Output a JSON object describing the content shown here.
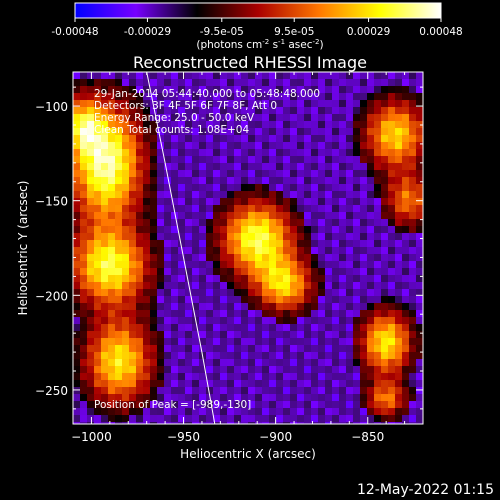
{
  "colorbar": {
    "tick_labels": [
      "-0.00048",
      "-0.00029",
      "-9.5e-05",
      "9.5e-05",
      "0.00029",
      "0.00048"
    ],
    "tick_values": [
      -0.00048,
      -0.00029,
      -9.5e-05,
      9.5e-05,
      0.00029,
      0.00048
    ],
    "range": [
      -0.00048,
      0.00048
    ],
    "units_main": "(photons cm",
    "units_exp1": "-2",
    "units_mid": " s",
    "units_exp2": "-1",
    "units_end": " asec",
    "units_exp3": "-2",
    "units_close": ")",
    "colors": [
      "#0000ff",
      "#7700ff",
      "#000000",
      "#aa0000",
      "#ff7700",
      "#ffff00",
      "#ffffff"
    ]
  },
  "overlay": {
    "time_range": "29-Jan-2014 05:44:40.000 to 05:48:48.000",
    "detectors": "Detectors: 3F 4F 5F 6F 7F 8F, Att 0",
    "energy": "Energy Range: 25.0 - 50.0 keV",
    "clean": "Clean     Total counts: 1.08E+04",
    "peak": "Position of Peak = [-989,-130]"
  },
  "footer": {
    "date": "12-May-2022 01:15"
  },
  "chart_data": {
    "type": "heatmap",
    "title": "Reconstructed RHESSI Image",
    "xlabel": "Heliocentric X (arcsec)",
    "ylabel": "Heliocentric Y (arcsec)",
    "xlim": [
      -1010,
      -820
    ],
    "ylim": [
      -268,
      -82
    ],
    "x_ticks": [
      -1000,
      -950,
      -900,
      -850
    ],
    "x_tick_labels": [
      "−1000",
      "−950",
      "−900",
      "−850"
    ],
    "y_ticks": [
      -100,
      -150,
      -200,
      -250
    ],
    "y_tick_labels": [
      "−100",
      "−150",
      "−200",
      "−250"
    ],
    "peak_position": [
      -989,
      -130
    ],
    "limb_curve": [
      [
        -970,
        -82
      ],
      [
        -960,
        -130
      ],
      [
        -950,
        -180
      ],
      [
        -940,
        -230
      ],
      [
        -933,
        -268
      ]
    ],
    "sources": [
      {
        "x": -992,
        "y": -130,
        "sx": 14,
        "sy": 22,
        "amp": 1.0
      },
      {
        "x": -990,
        "y": -185,
        "sx": 15,
        "sy": 14,
        "amp": 0.85
      },
      {
        "x": -985,
        "y": -235,
        "sx": 13,
        "sy": 16,
        "amp": 0.8
      },
      {
        "x": -1005,
        "y": -110,
        "sx": 7,
        "sy": 10,
        "amp": 0.55
      },
      {
        "x": -910,
        "y": -170,
        "sx": 14,
        "sy": 14,
        "amp": 0.9
      },
      {
        "x": -895,
        "y": -195,
        "sx": 11,
        "sy": 10,
        "amp": 0.7
      },
      {
        "x": -835,
        "y": -115,
        "sx": 12,
        "sy": 13,
        "amp": 0.75
      },
      {
        "x": -828,
        "y": -150,
        "sx": 9,
        "sy": 10,
        "amp": 0.55
      },
      {
        "x": -840,
        "y": -225,
        "sx": 10,
        "sy": 12,
        "amp": 0.8
      },
      {
        "x": -840,
        "y": -255,
        "sx": 8,
        "sy": 7,
        "amp": 0.55
      }
    ]
  }
}
